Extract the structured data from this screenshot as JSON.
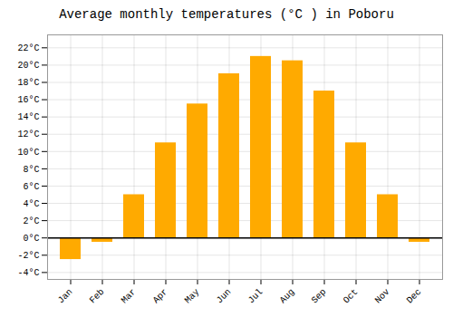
{
  "chart_data": {
    "type": "bar",
    "title": "Average monthly temperatures (°C ) in Poboru",
    "categories": [
      "Jan",
      "Feb",
      "Mar",
      "Apr",
      "May",
      "Jun",
      "Jul",
      "Aug",
      "Sep",
      "Oct",
      "Nov",
      "Dec"
    ],
    "values": [
      -2.5,
      -0.5,
      5.0,
      11.0,
      15.5,
      19.0,
      21.0,
      20.5,
      17.0,
      11.0,
      5.0,
      -0.5
    ],
    "color": "#FFAA00",
    "ylim": [
      -4.8,
      23.5
    ],
    "yticks": [
      {
        "value": -4,
        "label": "-4°C"
      },
      {
        "value": -2,
        "label": "-2°C"
      },
      {
        "value": 0,
        "label": "0°C"
      },
      {
        "value": 2,
        "label": "2°C"
      },
      {
        "value": 4,
        "label": "4°C"
      },
      {
        "value": 6,
        "label": "6°C"
      },
      {
        "value": 8,
        "label": "8°C"
      },
      {
        "value": 10,
        "label": "10°C"
      },
      {
        "value": 12,
        "label": "12°C"
      },
      {
        "value": 14,
        "label": "14°C"
      },
      {
        "value": 16,
        "label": "16°C"
      },
      {
        "value": 18,
        "label": "18°C"
      },
      {
        "value": 20,
        "label": "20°C"
      },
      {
        "value": 22,
        "label": "22°C"
      }
    ],
    "grid": true
  }
}
